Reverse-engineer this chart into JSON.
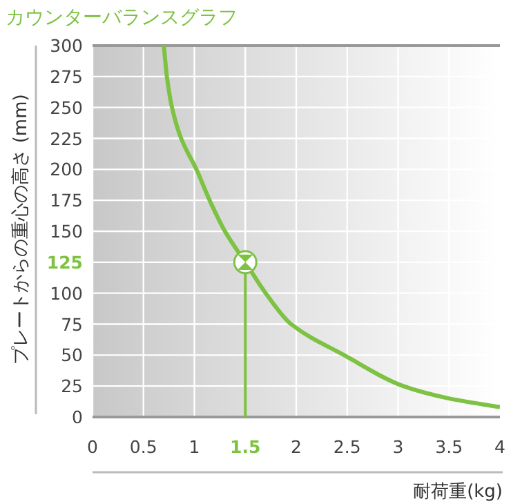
{
  "chart_data": {
    "type": "line",
    "title": "カウンターバランスグラフ",
    "xlabel": "耐荷重(kg)",
    "ylabel": "プレートからの重心の高さ (mm)",
    "series": [
      {
        "color": "#7dc242",
        "x": [
          0.7,
          0.73,
          0.78,
          0.87,
          1.02,
          1.15,
          1.3,
          1.5,
          1.7,
          1.95,
          2.47,
          3.05,
          3.5,
          4
        ],
        "values": [
          300,
          275,
          250,
          225,
          200,
          175,
          150,
          125,
          100,
          75,
          50,
          25,
          15,
          8
        ]
      },
      {
        "color": "#7dc242",
        "x": [
          1.5,
          1.5
        ],
        "values": [
          0,
          125
        ]
      },
      {
        "type": "scatter",
        "color": "#7dc242",
        "x": [
          1.5
        ],
        "values": [
          125
        ]
      }
    ],
    "xlim": [
      0,
      4
    ],
    "ylim": [
      0,
      300
    ],
    "xticks": [
      0,
      0.5,
      1,
      {
        "value": 1.5,
        "label": "1.5"
      },
      2,
      2.5,
      3,
      3.5,
      4
    ],
    "yticks": [
      0,
      25,
      50,
      75,
      100,
      {
        "value": 125,
        "label": "125"
      },
      150,
      175,
      200,
      225,
      250,
      275,
      300
    ],
    "grid": true
  }
}
